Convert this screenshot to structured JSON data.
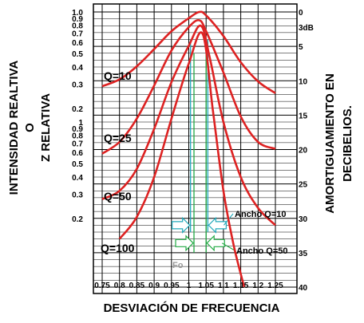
{
  "chart_data": {
    "type": "line",
    "xlabel": "DESVIACIÓN DE FRECUENCIA",
    "ylabel_left": [
      "INTENSIDAD REALTIVA",
      "O",
      "Z RELATIVA"
    ],
    "ylabel_right": [
      "AMORTIGUAMIENTO EN",
      "DECIBELIOS."
    ],
    "x_ticks": [
      "0.75",
      "0.8",
      "0.85",
      "0.9",
      "0.95",
      "1",
      "1.05",
      "1.1",
      "1.15",
      "1.2",
      "1.25"
    ],
    "xlim": [
      0.75,
      1.25
    ],
    "y_left_ticks": [
      {
        "label": "1.0",
        "db": 0
      },
      {
        "label": "0.9",
        "db": 0.9
      },
      {
        "label": "0.8",
        "db": 1.9
      },
      {
        "label": "0.7",
        "db": 3.1
      },
      {
        "label": "0.6",
        "db": 4.4
      },
      {
        "label": "0.5",
        "db": 6.0
      },
      {
        "label": "0.4",
        "db": 8.0
      },
      {
        "label": "0.3",
        "db": 10.5
      },
      {
        "label": "0.2",
        "db": 14.0
      },
      {
        "label": "1",
        "db": 16.0
      },
      {
        "label": "0.9",
        "db": 16.9
      },
      {
        "label": "0.8",
        "db": 17.9
      },
      {
        "label": "0.7",
        "db": 19.1
      },
      {
        "label": "0.6",
        "db": 20.4
      },
      {
        "label": "0.5",
        "db": 22.0
      },
      {
        "label": "0.4",
        "db": 24.0
      },
      {
        "label": "0.3",
        "db": 26.5
      },
      {
        "label": "0.2",
        "db": 30.0
      }
    ],
    "y_right_ticks": [
      "0",
      "3dB",
      "5",
      "10",
      "15",
      "20",
      "25",
      "30",
      "35",
      "40"
    ],
    "y_right_values": [
      0,
      2.2,
      5,
      10,
      15,
      20,
      25,
      30,
      35,
      40
    ],
    "ylim_db": [
      0,
      40
    ],
    "series": [
      {
        "name": "Q=10",
        "peak_x": 1.03,
        "peak_db": 0,
        "x": [
          0.75,
          0.8,
          0.85,
          0.9,
          0.95,
          1.0,
          1.03,
          1.05,
          1.1,
          1.15,
          1.2,
          1.25
        ],
        "y_db": [
          10.8,
          9.8,
          7.9,
          5.4,
          2.8,
          0.9,
          0.0,
          0.5,
          3.5,
          7.3,
          10.1,
          11.8
        ]
      },
      {
        "name": "Q=25",
        "peak_x": 1.03,
        "peak_db": 1.2,
        "x": [
          0.75,
          0.8,
          0.85,
          0.9,
          0.95,
          1.0,
          1.03,
          1.05,
          1.1,
          1.15,
          1.2,
          1.25
        ],
        "y_db": [
          20.6,
          18.9,
          15.5,
          10.7,
          5.6,
          2.2,
          1.2,
          2.8,
          8.8,
          15.2,
          18.9,
          19.9
        ]
      },
      {
        "name": "Q=50",
        "peak_x": 1.035,
        "peak_db": 2.0,
        "x": [
          0.75,
          0.8,
          0.85,
          0.9,
          0.95,
          1.0,
          1.035,
          1.06,
          1.1,
          1.15,
          1.2,
          1.25
        ],
        "y_db": [
          27.2,
          26.0,
          22.8,
          17.0,
          10.2,
          4.9,
          2.0,
          6.5,
          16.0,
          24.0,
          28.5,
          31.0
        ]
      },
      {
        "name": "Q=100",
        "peak_x": 1.04,
        "peak_db": 3.2,
        "x": [
          0.8,
          0.85,
          0.9,
          0.95,
          1.0,
          1.04,
          1.07,
          1.1,
          1.13,
          1.16
        ],
        "y_db": [
          33.0,
          29.8,
          24.0,
          15.5,
          7.5,
          3.2,
          14.5,
          26.0,
          34.0,
          40.0
        ]
      }
    ],
    "annotations": [
      "Ancho Q=10",
      "Ancho Q=50",
      "Fo"
    ]
  }
}
